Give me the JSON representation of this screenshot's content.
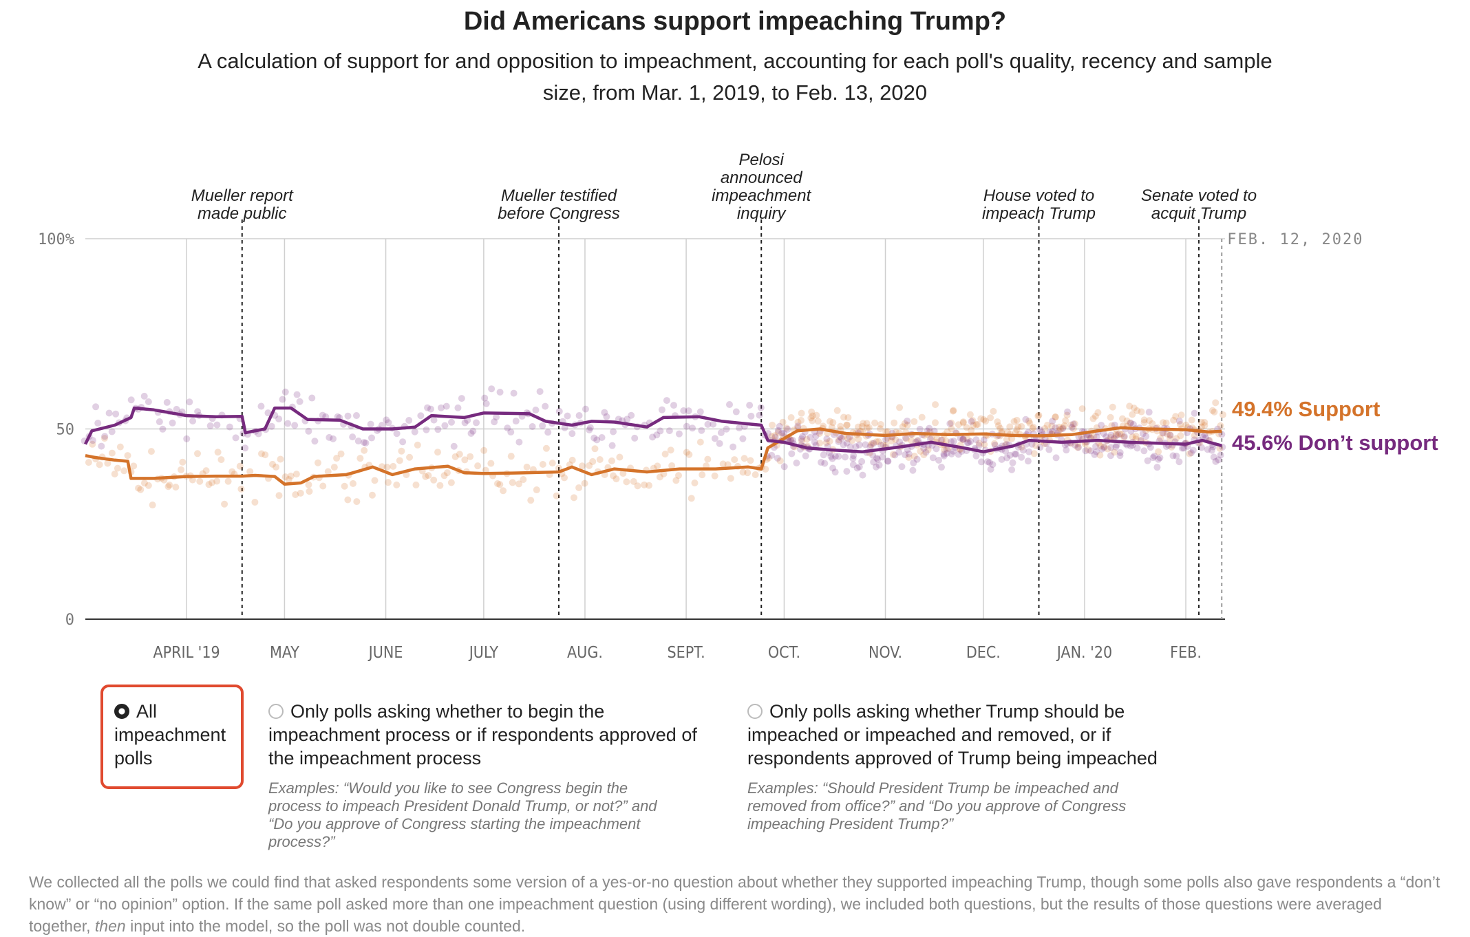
{
  "header": {
    "title": "Did Americans support impeaching Trump?",
    "subtitle": "A calculation of support for and opposition to impeachment, accounting for each poll's quality, recency and sample size, from Mar. 1, 2019, to Feb. 13, 2020"
  },
  "chart_data": {
    "type": "line",
    "x_range": [
      "2019-03-01",
      "2020-02-13"
    ],
    "ylim": [
      0,
      100
    ],
    "y_ticks": [
      {
        "value": 0,
        "label": "0"
      },
      {
        "value": 50,
        "label": "50"
      },
      {
        "value": 100,
        "label": "100%"
      }
    ],
    "month_ticks": [
      {
        "date": "2019-04-01",
        "label": "APRIL '19"
      },
      {
        "date": "2019-05-01",
        "label": "MAY"
      },
      {
        "date": "2019-06-01",
        "label": "JUNE"
      },
      {
        "date": "2019-07-01",
        "label": "JULY"
      },
      {
        "date": "2019-08-01",
        "label": "AUG."
      },
      {
        "date": "2019-09-01",
        "label": "SEPT."
      },
      {
        "date": "2019-10-01",
        "label": "OCT."
      },
      {
        "date": "2019-11-01",
        "label": "NOV."
      },
      {
        "date": "2019-12-01",
        "label": "DEC."
      },
      {
        "date": "2020-01-01",
        "label": "JAN. '20"
      },
      {
        "date": "2020-02-01",
        "label": "FEB."
      }
    ],
    "current_date": {
      "date": "2020-02-12",
      "label": "FEB. 12, 2020"
    },
    "events": [
      {
        "date": "2019-04-18",
        "lines": [
          "Mueller report",
          "made public"
        ]
      },
      {
        "date": "2019-07-24",
        "lines": [
          "Mueller testified",
          "before Congress"
        ]
      },
      {
        "date": "2019-09-24",
        "lines": [
          "Pelosi",
          "announced",
          "impeachment",
          "inquiry"
        ]
      },
      {
        "date": "2019-12-18",
        "lines": [
          "House voted to",
          "impeach Trump"
        ]
      },
      {
        "date": "2020-02-05",
        "lines": [
          "Senate voted to",
          "acquit Trump"
        ]
      }
    ],
    "series": [
      {
        "name": "Support",
        "end_label": "49.4% Support",
        "color": "#d4732a",
        "points": [
          [
            "2019-03-01",
            43.0
          ],
          [
            "2019-03-04",
            42.5
          ],
          [
            "2019-03-10",
            41.8
          ],
          [
            "2019-03-14",
            41.5
          ],
          [
            "2019-03-15",
            37.0
          ],
          [
            "2019-03-22",
            37.0
          ],
          [
            "2019-04-01",
            37.5
          ],
          [
            "2019-04-10",
            37.6
          ],
          [
            "2019-04-18",
            37.6
          ],
          [
            "2019-04-22",
            37.8
          ],
          [
            "2019-04-28",
            37.5
          ],
          [
            "2019-05-01",
            35.5
          ],
          [
            "2019-05-06",
            35.8
          ],
          [
            "2019-05-10",
            37.5
          ],
          [
            "2019-05-20",
            38.0
          ],
          [
            "2019-05-28",
            40.0
          ],
          [
            "2019-06-03",
            38.0
          ],
          [
            "2019-06-10",
            39.5
          ],
          [
            "2019-06-20",
            40.2
          ],
          [
            "2019-06-25",
            38.5
          ],
          [
            "2019-07-01",
            38.3
          ],
          [
            "2019-07-10",
            38.4
          ],
          [
            "2019-07-20",
            38.6
          ],
          [
            "2019-07-24",
            38.7
          ],
          [
            "2019-07-28",
            40.0
          ],
          [
            "2019-08-03",
            38.0
          ],
          [
            "2019-08-10",
            39.5
          ],
          [
            "2019-08-20",
            38.7
          ],
          [
            "2019-08-30",
            39.5
          ],
          [
            "2019-09-10",
            39.5
          ],
          [
            "2019-09-20",
            40.0
          ],
          [
            "2019-09-24",
            39.5
          ],
          [
            "2019-09-26",
            45.0
          ],
          [
            "2019-10-01",
            47.5
          ],
          [
            "2019-10-05",
            49.5
          ],
          [
            "2019-10-12",
            50.0
          ],
          [
            "2019-10-20",
            48.8
          ],
          [
            "2019-11-01",
            48.3
          ],
          [
            "2019-11-10",
            48.8
          ],
          [
            "2019-11-20",
            48.5
          ],
          [
            "2019-12-01",
            48.7
          ],
          [
            "2019-12-10",
            48.3
          ],
          [
            "2019-12-18",
            48.2
          ],
          [
            "2019-12-28",
            48.5
          ],
          [
            "2020-01-05",
            49.5
          ],
          [
            "2020-01-12",
            50.3
          ],
          [
            "2020-01-20",
            50.0
          ],
          [
            "2020-02-01",
            49.8
          ],
          [
            "2020-02-08",
            49.2
          ],
          [
            "2020-02-12",
            49.4
          ]
        ]
      },
      {
        "name": "Don’t support",
        "end_label": "45.6% Don’t support",
        "color": "#762a7e",
        "points": [
          [
            "2019-03-01",
            46.0
          ],
          [
            "2019-03-03",
            49.5
          ],
          [
            "2019-03-10",
            51.0
          ],
          [
            "2019-03-15",
            53.0
          ],
          [
            "2019-03-16",
            55.5
          ],
          [
            "2019-03-22",
            55.0
          ],
          [
            "2019-04-01",
            53.5
          ],
          [
            "2019-04-10",
            53.2
          ],
          [
            "2019-04-18",
            53.3
          ],
          [
            "2019-04-19",
            49.0
          ],
          [
            "2019-04-25",
            50.0
          ],
          [
            "2019-04-28",
            55.5
          ],
          [
            "2019-05-03",
            55.5
          ],
          [
            "2019-05-08",
            52.5
          ],
          [
            "2019-05-18",
            52.3
          ],
          [
            "2019-05-25",
            50.0
          ],
          [
            "2019-06-03",
            50.0
          ],
          [
            "2019-06-10",
            50.5
          ],
          [
            "2019-06-15",
            53.5
          ],
          [
            "2019-06-25",
            53.0
          ],
          [
            "2019-07-01",
            54.2
          ],
          [
            "2019-07-15",
            54.0
          ],
          [
            "2019-07-20",
            52.0
          ],
          [
            "2019-07-28",
            51.0
          ],
          [
            "2019-08-03",
            52.0
          ],
          [
            "2019-08-10",
            51.8
          ],
          [
            "2019-08-20",
            50.5
          ],
          [
            "2019-08-25",
            53.0
          ],
          [
            "2019-09-05",
            53.2
          ],
          [
            "2019-09-12",
            52.0
          ],
          [
            "2019-09-18",
            51.5
          ],
          [
            "2019-09-24",
            51.0
          ],
          [
            "2019-09-26",
            47.0
          ],
          [
            "2019-10-01",
            46.5
          ],
          [
            "2019-10-08",
            45.0
          ],
          [
            "2019-10-15",
            44.5
          ],
          [
            "2019-10-25",
            44.0
          ],
          [
            "2019-11-05",
            45.2
          ],
          [
            "2019-11-15",
            46.5
          ],
          [
            "2019-11-25",
            45.0
          ],
          [
            "2019-12-01",
            44.0
          ],
          [
            "2019-12-10",
            45.5
          ],
          [
            "2019-12-15",
            47.0
          ],
          [
            "2019-12-25",
            46.5
          ],
          [
            "2020-01-05",
            47.0
          ],
          [
            "2020-01-15",
            46.5
          ],
          [
            "2020-01-25",
            46.2
          ],
          [
            "2020-02-01",
            46.0
          ],
          [
            "2020-02-06",
            47.0
          ],
          [
            "2020-02-12",
            45.6
          ]
        ]
      }
    ]
  },
  "options": {
    "selected": "All impeachment polls",
    "items": [
      {
        "label_lines": [
          "All",
          "impeachment",
          "polls"
        ],
        "example_lines": []
      },
      {
        "label_lines": [
          "Only polls asking whether to begin the",
          "impeachment process or if respondents approved of",
          "the impeachment process"
        ],
        "example_lines": [
          "Examples: “Would you like to see Congress begin the",
          "process to impeach President Donald Trump, or not?” and",
          "“Do you approve of Congress starting the impeachment",
          "process?”"
        ]
      },
      {
        "label_lines": [
          "Only polls asking whether Trump should be",
          "impeached or impeached and removed, or if",
          "respondents approved of Trump being impeached"
        ],
        "example_lines": [
          "Examples: “Should President Trump be impeached and",
          "removed from office?” and “Do you approve of Congress",
          "impeaching President Trump?”"
        ]
      }
    ]
  },
  "footnote": {
    "before": "We collected all the polls we could find that asked respondents some version of a yes-or-no question about whether they supported impeaching Trump, though some polls also gave respondents a “don’t know” or “no opinion” option. If the same poll asked more than one impeachment question (using different wording), we included both questions, but the results of those questions were averaged together, ",
    "emphasis": "then",
    "after": " input into the model, so the poll was not double counted."
  }
}
